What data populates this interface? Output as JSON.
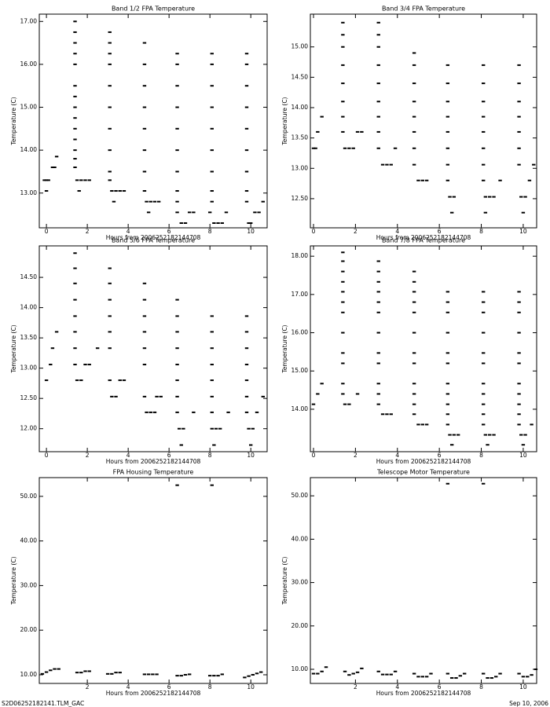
{
  "chart_data": [
    {
      "type": "scatter",
      "title": "Band 1/2 FPA Temperature",
      "x_label": "Hours from 2006252182144708",
      "y_label": "Temperature (C)",
      "color": "#000000",
      "xlim": [
        -0.35,
        10.8
      ],
      "xticks": [
        0,
        2,
        4,
        6,
        8,
        10
      ],
      "ylim": [
        12.19,
        17.17
      ],
      "yticks": [
        {
          "value": 13,
          "label": "13.00"
        },
        {
          "value": 14,
          "label": "14.00"
        },
        {
          "value": 15,
          "label": "15.00"
        },
        {
          "value": 16,
          "label": "16.00"
        },
        {
          "value": 17,
          "label": "17.00"
        }
      ],
      "x": [
        0,
        -0.1,
        0,
        0.1,
        0.3,
        0.4,
        0.5,
        1.4,
        1.4,
        1.4,
        1.4,
        1.4,
        1.4,
        1.4,
        1.4,
        1.4,
        1.4,
        1.4,
        1.4,
        1.4,
        1.4,
        1.5,
        1.7,
        1.9,
        2.1,
        1.6,
        3.1,
        3.1,
        3.1,
        3.1,
        3.1,
        3.1,
        3.1,
        3.1,
        3.1,
        3.1,
        3.2,
        3.4,
        3.6,
        3.8,
        3.3,
        4.8,
        4.8,
        4.8,
        4.8,
        4.8,
        4.8,
        4.8,
        4.8,
        4.9,
        5.1,
        5.3,
        5.5,
        5.0,
        6.4,
        6.4,
        6.4,
        6.4,
        6.4,
        6.4,
        6.4,
        6.4,
        6.4,
        6.4,
        6.6,
        6.8,
        7.0,
        7.2,
        8.1,
        8.1,
        8.1,
        8.1,
        8.1,
        8.1,
        8.1,
        8.1,
        8.1,
        8.0,
        8.2,
        8.4,
        8.6,
        8.8,
        9.8,
        9.8,
        9.8,
        9.8,
        9.8,
        9.8,
        9.8,
        9.8,
        9.8,
        9.9,
        10.0,
        10.2,
        10.4,
        10.6
      ],
      "y": [
        13.05,
        13.3,
        13.3,
        13.3,
        13.6,
        13.6,
        13.85,
        17.0,
        16.75,
        16.5,
        16.25,
        16.0,
        15.5,
        15.25,
        15.0,
        14.75,
        14.5,
        14.25,
        14.0,
        13.8,
        13.6,
        13.3,
        13.3,
        13.3,
        13.3,
        13.05,
        16.75,
        16.5,
        16.25,
        16.0,
        15.5,
        15.0,
        14.5,
        14.0,
        13.5,
        13.3,
        13.05,
        13.05,
        13.05,
        13.05,
        12.8,
        16.5,
        16.0,
        15.5,
        15.0,
        14.5,
        14.0,
        13.5,
        13.05,
        12.8,
        12.8,
        12.8,
        12.8,
        12.55,
        16.25,
        16.0,
        15.5,
        15.0,
        14.5,
        14.0,
        13.5,
        13.05,
        12.8,
        12.55,
        12.3,
        12.3,
        12.55,
        12.55,
        16.25,
        16.0,
        15.5,
        15.0,
        14.5,
        14.0,
        13.5,
        13.05,
        12.8,
        12.55,
        12.3,
        12.3,
        12.3,
        12.55,
        16.25,
        16.0,
        15.5,
        15.0,
        14.5,
        14.0,
        13.5,
        13.05,
        12.8,
        12.3,
        12.3,
        12.55,
        12.55,
        12.8
      ]
    },
    {
      "type": "scatter",
      "title": "Band 3/4 FPA Temperature",
      "x_label": "Hours from 2006252182144708",
      "y_label": "Temperature (C)",
      "color": "#000000",
      "xlim": [
        -0.15,
        10.64
      ],
      "xticks": [
        0,
        2,
        4,
        6,
        8,
        10
      ],
      "ylim": [
        12.02,
        15.54
      ],
      "yticks": [
        {
          "value": 12.5,
          "label": "12.50"
        },
        {
          "value": 13,
          "label": "13.00"
        },
        {
          "value": 13.5,
          "label": "13.50"
        },
        {
          "value": 14,
          "label": "14.00"
        },
        {
          "value": 14.5,
          "label": "14.50"
        },
        {
          "value": 15,
          "label": "15.00"
        }
      ],
      "x": [
        0,
        0.1,
        0.2,
        0.4,
        1.4,
        1.4,
        1.4,
        1.4,
        1.4,
        1.4,
        1.4,
        1.4,
        1.5,
        1.7,
        1.9,
        2.1,
        2.3,
        3.1,
        3.1,
        3.1,
        3.1,
        3.1,
        3.1,
        3.1,
        3.1,
        3.1,
        3.3,
        3.5,
        3.7,
        3.9,
        4.8,
        4.8,
        4.8,
        4.8,
        4.8,
        4.8,
        4.8,
        4.8,
        5.0,
        5.2,
        5.4,
        6.4,
        6.4,
        6.4,
        6.4,
        6.4,
        6.4,
        6.4,
        6.4,
        6.5,
        6.7,
        6.6,
        8.1,
        8.1,
        8.1,
        8.1,
        8.1,
        8.1,
        8.1,
        8.1,
        8.2,
        8.4,
        8.6,
        8.2,
        8.9,
        9.8,
        9.8,
        9.8,
        9.8,
        9.8,
        9.8,
        9.8,
        9.9,
        10.1,
        10.0,
        10.3,
        10.5
      ],
      "y": [
        13.33,
        13.33,
        13.6,
        13.85,
        15.4,
        15.2,
        15.0,
        14.7,
        14.4,
        14.1,
        13.85,
        13.6,
        13.33,
        13.33,
        13.33,
        13.6,
        13.6,
        15.4,
        15.2,
        15.0,
        14.7,
        14.4,
        14.1,
        13.85,
        13.6,
        13.33,
        13.06,
        13.06,
        13.06,
        13.33,
        14.9,
        14.7,
        14.4,
        14.1,
        13.85,
        13.6,
        13.33,
        13.06,
        12.8,
        12.8,
        12.8,
        14.7,
        14.4,
        14.1,
        13.85,
        13.6,
        13.33,
        13.06,
        12.8,
        12.53,
        12.53,
        12.27,
        14.7,
        14.4,
        14.1,
        13.85,
        13.6,
        13.33,
        13.06,
        12.8,
        12.53,
        12.53,
        12.53,
        12.27,
        12.8,
        14.7,
        14.4,
        14.1,
        13.85,
        13.6,
        13.33,
        13.06,
        12.53,
        12.53,
        12.27,
        12.8,
        13.06
      ]
    },
    {
      "type": "scatter",
      "title": "Band 5/6 FPA Temperature",
      "x_label": "Hours from 2006252182144708",
      "y_label": "Temperature (C)",
      "color": "#000000",
      "xlim": [
        -0.35,
        10.8
      ],
      "xticks": [
        0,
        2,
        4,
        6,
        8,
        10
      ],
      "ylim": [
        11.62,
        15.02
      ],
      "yticks": [
        {
          "value": 12,
          "label": "12.00"
        },
        {
          "value": 12.5,
          "label": "12.50"
        },
        {
          "value": 13,
          "label": "13.00"
        },
        {
          "value": 13.5,
          "label": "13.50"
        },
        {
          "value": 14,
          "label": "14.00"
        },
        {
          "value": 14.5,
          "label": "14.50"
        }
      ],
      "x": [
        0,
        0.2,
        0.3,
        0.5,
        1.4,
        1.4,
        1.4,
        1.4,
        1.4,
        1.4,
        1.4,
        1.4,
        1.5,
        1.7,
        1.9,
        2.1,
        2.5,
        3.1,
        3.1,
        3.1,
        3.1,
        3.1,
        3.1,
        3.1,
        3.2,
        3.4,
        3.6,
        3.8,
        4.8,
        4.8,
        4.8,
        4.8,
        4.8,
        4.8,
        4.8,
        4.9,
        5.1,
        5.3,
        5.4,
        5.6,
        6.4,
        6.4,
        6.4,
        6.4,
        6.4,
        6.4,
        6.4,
        6.4,
        6.5,
        6.7,
        6.6,
        7.2,
        8.1,
        8.1,
        8.1,
        8.1,
        8.1,
        8.1,
        8.1,
        8.1,
        8.3,
        8.5,
        8.2,
        8.9,
        9.8,
        9.8,
        9.8,
        9.8,
        9.8,
        9.8,
        9.8,
        9.9,
        10.1,
        10.0,
        10.3,
        10.6
      ],
      "y": [
        12.8,
        13.06,
        13.33,
        13.6,
        14.9,
        14.65,
        14.4,
        14.13,
        13.86,
        13.6,
        13.33,
        13.06,
        12.8,
        12.8,
        13.06,
        13.06,
        13.33,
        14.65,
        14.4,
        14.13,
        13.86,
        13.6,
        13.33,
        12.8,
        12.53,
        12.53,
        12.8,
        12.8,
        14.4,
        14.13,
        13.86,
        13.6,
        13.33,
        13.06,
        12.53,
        12.27,
        12.27,
        12.27,
        12.53,
        12.53,
        14.13,
        13.86,
        13.6,
        13.33,
        13.06,
        12.8,
        12.53,
        12.27,
        12.0,
        12.0,
        11.73,
        12.27,
        13.86,
        13.6,
        13.33,
        13.06,
        12.8,
        12.53,
        12.27,
        12.0,
        12.0,
        12.0,
        11.73,
        12.27,
        13.86,
        13.6,
        13.33,
        13.06,
        12.8,
        12.53,
        12.27,
        12.0,
        12.0,
        11.73,
        12.27,
        12.53
      ]
    },
    {
      "type": "scatter",
      "title": "Band 7/8 FPA Temperature",
      "x_label": "Hours from 2006252182144708",
      "y_label": "Temperature (C)",
      "color": "#000000",
      "xlim": [
        -0.15,
        10.64
      ],
      "xticks": [
        0,
        2,
        4,
        6,
        8,
        10
      ],
      "ylim": [
        12.89,
        18.27
      ],
      "yticks": [
        {
          "value": 14,
          "label": "14.00"
        },
        {
          "value": 15,
          "label": "15.00"
        },
        {
          "value": 16,
          "label": "16.00"
        },
        {
          "value": 17,
          "label": "17.00"
        },
        {
          "value": 18,
          "label": "18.00"
        }
      ],
      "x": [
        0,
        0.2,
        0.4,
        1.4,
        1.4,
        1.4,
        1.4,
        1.4,
        1.4,
        1.4,
        1.4,
        1.4,
        1.4,
        1.4,
        1.4,
        1.5,
        1.7,
        2.1,
        3.1,
        3.1,
        3.1,
        3.1,
        3.1,
        3.1,
        3.1,
        3.1,
        3.1,
        3.1,
        3.1,
        3.1,
        3.3,
        3.5,
        3.7,
        4.8,
        4.8,
        4.8,
        4.8,
        4.8,
        4.8,
        4.8,
        4.8,
        4.8,
        4.8,
        4.8,
        4.8,
        5.0,
        5.2,
        5.4,
        6.4,
        6.4,
        6.4,
        6.4,
        6.4,
        6.4,
        6.4,
        6.4,
        6.4,
        6.4,
        6.4,
        6.5,
        6.7,
        6.9,
        6.6,
        8.1,
        8.1,
        8.1,
        8.1,
        8.1,
        8.1,
        8.1,
        8.1,
        8.1,
        8.1,
        8.1,
        8.2,
        8.4,
        8.6,
        8.3,
        9.8,
        9.8,
        9.8,
        9.8,
        9.8,
        9.8,
        9.8,
        9.8,
        9.8,
        9.8,
        9.8,
        9.9,
        10.1,
        10.0,
        10.4
      ],
      "y": [
        14.13,
        14.4,
        14.67,
        18.1,
        17.87,
        17.6,
        17.33,
        17.07,
        16.8,
        16.53,
        16.0,
        15.47,
        15.2,
        14.67,
        14.4,
        14.13,
        14.13,
        14.4,
        17.87,
        17.6,
        17.33,
        17.07,
        16.8,
        16.53,
        16.0,
        15.47,
        15.2,
        14.67,
        14.4,
        14.13,
        13.87,
        13.87,
        13.87,
        17.6,
        17.33,
        17.07,
        16.8,
        16.53,
        16.0,
        15.47,
        15.2,
        14.67,
        14.4,
        14.13,
        13.87,
        13.6,
        13.6,
        13.6,
        17.07,
        16.8,
        16.53,
        16.0,
        15.47,
        15.2,
        14.67,
        14.4,
        14.13,
        13.87,
        13.6,
        13.33,
        13.33,
        13.33,
        13.07,
        17.07,
        16.8,
        16.53,
        16.0,
        15.47,
        15.2,
        14.67,
        14.4,
        14.13,
        13.87,
        13.6,
        13.33,
        13.33,
        13.33,
        13.07,
        17.07,
        16.8,
        16.53,
        16.0,
        15.47,
        15.2,
        14.67,
        14.4,
        14.13,
        13.87,
        13.6,
        13.33,
        13.33,
        13.07,
        13.6
      ]
    },
    {
      "type": "scatter",
      "title": "FPA Housing Temperature",
      "x_label": "Hours from 2006252182144708",
      "y_label": "Temperature (C)",
      "color": "#000000",
      "xlim": [
        -0.35,
        10.8
      ],
      "xticks": [
        2,
        4,
        6,
        8,
        10
      ],
      "ylim": [
        8.06,
        54.2
      ],
      "yticks": [
        {
          "value": 10,
          "label": "10.00"
        },
        {
          "value": 20,
          "label": "20.00"
        },
        {
          "value": 30,
          "label": "30.00"
        },
        {
          "value": 40,
          "label": "40.00"
        },
        {
          "value": 50,
          "label": "50.00"
        }
      ],
      "x": [
        -0.2,
        0,
        0.2,
        0.4,
        0.6,
        1.5,
        1.7,
        1.9,
        2.1,
        3.0,
        3.2,
        3.4,
        3.6,
        4.8,
        5.0,
        5.2,
        5.4,
        6.4,
        6.6,
        6.8,
        7.0,
        8.0,
        8.2,
        8.4,
        8.6,
        9.7,
        9.9,
        10.1,
        10.3,
        10.5,
        6.4,
        8.1
      ],
      "y": [
        10.2,
        10.6,
        11.0,
        11.3,
        11.3,
        10.5,
        10.5,
        10.8,
        10.8,
        10.2,
        10.2,
        10.5,
        10.5,
        10.1,
        10.1,
        10.1,
        10.1,
        9.8,
        9.8,
        10.0,
        10.1,
        9.8,
        9.8,
        9.8,
        10.1,
        9.4,
        9.7,
        10.0,
        10.3,
        10.6,
        52.5,
        52.5
      ]
    },
    {
      "type": "scatter",
      "title": "Telescope Motor Temperature",
      "x_label": "Hours from 2006252182144708",
      "y_label": "Temperature (C)",
      "color": "#000000",
      "xlim": [
        -0.15,
        10.64
      ],
      "xticks": [
        2,
        4,
        6,
        8,
        10
      ],
      "ylim": [
        6.74,
        54.2
      ],
      "yticks": [
        {
          "value": 10,
          "label": "10.00"
        },
        {
          "value": 20,
          "label": "20.00"
        },
        {
          "value": 30,
          "label": "30.00"
        },
        {
          "value": 40,
          "label": "40.00"
        },
        {
          "value": 50,
          "label": "50.00"
        }
      ],
      "x": [
        0,
        0.2,
        0.4,
        0.6,
        1.5,
        1.7,
        1.9,
        2.1,
        2.3,
        3.1,
        3.3,
        3.5,
        3.7,
        3.9,
        4.8,
        5.0,
        5.2,
        5.4,
        5.6,
        6.4,
        6.6,
        6.8,
        7.0,
        7.2,
        8.1,
        8.3,
        8.5,
        8.7,
        8.9,
        9.8,
        10.0,
        10.2,
        10.4,
        10.6,
        6.4,
        8.1
      ],
      "y": [
        9.0,
        9.0,
        9.5,
        10.5,
        9.5,
        8.7,
        9.0,
        9.3,
        10.2,
        9.5,
        8.8,
        8.8,
        8.8,
        9.5,
        9.0,
        8.3,
        8.3,
        8.3,
        9.0,
        9.0,
        8.0,
        8.0,
        8.5,
        9.0,
        9.0,
        8.0,
        8.0,
        8.3,
        9.0,
        9.0,
        8.3,
        8.3,
        8.7,
        10.0,
        52.8,
        52.8
      ]
    }
  ],
  "footer": {
    "left": "S2D06252182141.TLM_GAC",
    "right": "Sep 10, 2006"
  }
}
